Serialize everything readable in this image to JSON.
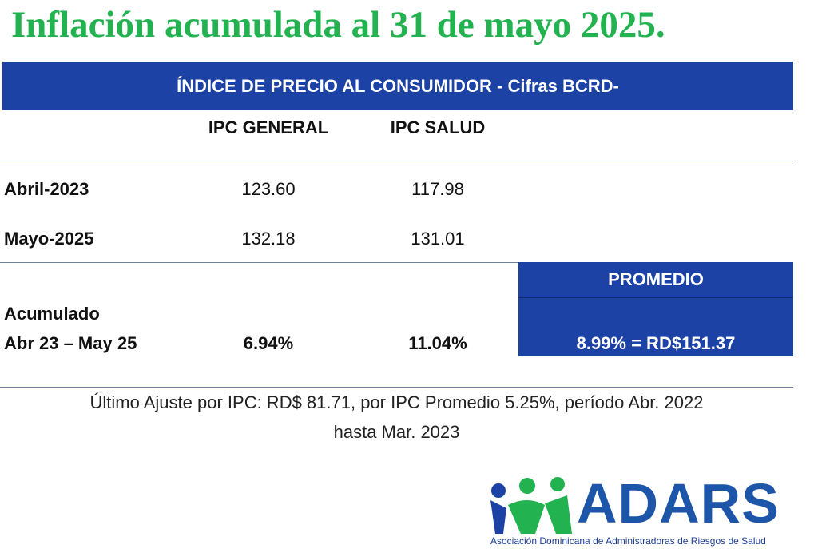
{
  "title": "Inflación acumulada al 31 de mayo 2025.",
  "table": {
    "banner": "ÍNDICE DE PRECIO AL CONSUMIDOR - Cifras BCRD-",
    "columns": [
      "IPC GENERAL",
      "IPC SALUD"
    ],
    "rows": [
      [
        "Abril-2023",
        "123.60",
        "117.98"
      ],
      [
        "Mayo-2025",
        "132.18",
        "131.01"
      ]
    ],
    "cumulative": {
      "label": [
        "Acumulado",
        "Abr 23 – May 25"
      ],
      "general": "6.94%",
      "salud": "11.04%",
      "average_header": "PROMEDIO",
      "average_value": "8.99% = RD$151.37"
    }
  },
  "footnote": [
    "Último Ajuste por IPC: RD$ 81.71, por IPC Promedio 5.25%,  período Abr. 2022",
    "hasta Mar. 2023"
  ],
  "logo": {
    "name": "ADARS",
    "tagline": "Asociación Dominicana de Administradoras de Riesgos de Salud"
  }
}
